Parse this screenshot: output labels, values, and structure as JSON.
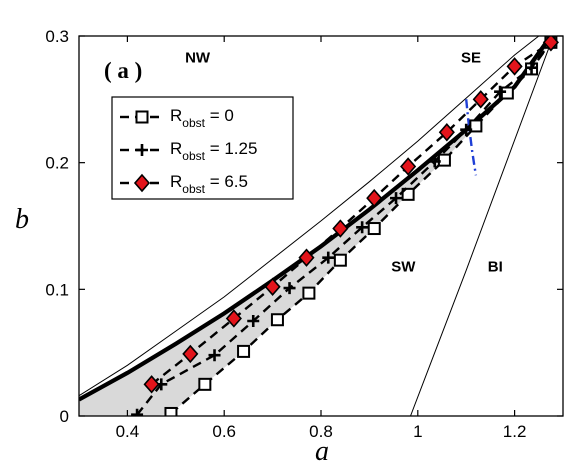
{
  "chart_data": {
    "type": "line",
    "panel_label": "( a )",
    "xlabel": "a",
    "ylabel": "b",
    "xlim": [
      0.3,
      1.3
    ],
    "ylim": [
      0,
      0.3
    ],
    "xticks": [
      0.4,
      0.6,
      0.8,
      1,
      1.2
    ],
    "xtick_labels": [
      "0.4",
      "0.6",
      "0.8",
      "1",
      "1.2"
    ],
    "yticks": [
      0,
      0.1,
      0.2,
      0.3
    ],
    "ytick_labels": [
      "0",
      "0.1",
      "0.2",
      "0.3"
    ],
    "grid": false,
    "legend_position": "upper-left",
    "regions": [
      {
        "label": "NW",
        "x": 0.545,
        "y": 0.283
      },
      {
        "label": "SE",
        "x": 1.11,
        "y": 0.283
      },
      {
        "label": "SW",
        "x": 0.97,
        "y": 0.118
      },
      {
        "label": "BI",
        "x": 1.16,
        "y": 0.118
      }
    ],
    "boundary_curves": [
      {
        "role": "thin-upper",
        "points": [
          [
            0.3,
            0.016
          ],
          [
            0.4,
            0.04
          ],
          [
            0.5,
            0.067
          ],
          [
            0.6,
            0.094
          ],
          [
            0.7,
            0.124
          ],
          [
            0.8,
            0.154
          ],
          [
            0.9,
            0.185
          ],
          [
            1.0,
            0.217
          ],
          [
            1.1,
            0.251
          ],
          [
            1.2,
            0.285
          ],
          [
            1.25,
            0.3
          ]
        ]
      },
      {
        "role": "thick",
        "points": [
          [
            0.3,
            0.013
          ],
          [
            0.4,
            0.034
          ],
          [
            0.5,
            0.057
          ],
          [
            0.6,
            0.081
          ],
          [
            0.7,
            0.107
          ],
          [
            0.8,
            0.134
          ],
          [
            0.9,
            0.163
          ],
          [
            1.0,
            0.194
          ],
          [
            1.1,
            0.226
          ],
          [
            1.2,
            0.26
          ],
          [
            1.275,
            0.3
          ]
        ]
      },
      {
        "role": "thin-BI",
        "points": [
          [
            0.985,
            0
          ],
          [
            1.1,
            0.115
          ],
          [
            1.28,
            0.3
          ]
        ]
      },
      {
        "role": "dash-dot",
        "points": [
          [
            1.1,
            0.25
          ],
          [
            1.104,
            0.235
          ],
          [
            1.108,
            0.222
          ],
          [
            1.112,
            0.21
          ],
          [
            1.116,
            0.2
          ],
          [
            1.12,
            0.19
          ]
        ]
      }
    ],
    "series": [
      {
        "name": "R_obst = 0",
        "legend_main": "R",
        "legend_sub": "obst",
        "legend_value": " = 0",
        "marker": "square",
        "x": [
          0.49,
          0.56,
          0.64,
          0.71,
          0.775,
          0.84,
          0.91,
          0.98,
          1.055,
          1.12,
          1.185,
          1.235,
          1.275
        ],
        "y": [
          0.002,
          0.025,
          0.051,
          0.076,
          0.097,
          0.123,
          0.148,
          0.175,
          0.202,
          0.229,
          0.255,
          0.274,
          0.295
        ]
      },
      {
        "name": "R_obst = 1.25",
        "legend_main": "R",
        "legend_sub": "obst",
        "legend_value": " = 1.25",
        "marker": "plus",
        "x": [
          0.42,
          0.47,
          0.58,
          0.66,
          0.735,
          0.815,
          0.885,
          0.955,
          1.035,
          1.1,
          1.17,
          1.235,
          1.275
        ],
        "y": [
          0.001,
          0.025,
          0.048,
          0.075,
          0.101,
          0.125,
          0.149,
          0.172,
          0.201,
          0.226,
          0.256,
          0.275,
          0.295
        ]
      },
      {
        "name": "R_obst = 6.5",
        "legend_main": "R",
        "legend_sub": "obst",
        "legend_value": " = 6.5",
        "marker": "diamond",
        "x": [
          0.45,
          0.53,
          0.62,
          0.7,
          0.77,
          0.84,
          0.91,
          0.98,
          1.06,
          1.13,
          1.2,
          1.275
        ],
        "y": [
          0.025,
          0.049,
          0.077,
          0.102,
          0.125,
          0.148,
          0.172,
          0.197,
          0.224,
          0.25,
          0.276,
          0.295
        ]
      }
    ],
    "colors": {
      "shade": "#d9d9d9",
      "diamond_fill": "#e3141b",
      "dash_dot": "#1f3fd6"
    }
  }
}
